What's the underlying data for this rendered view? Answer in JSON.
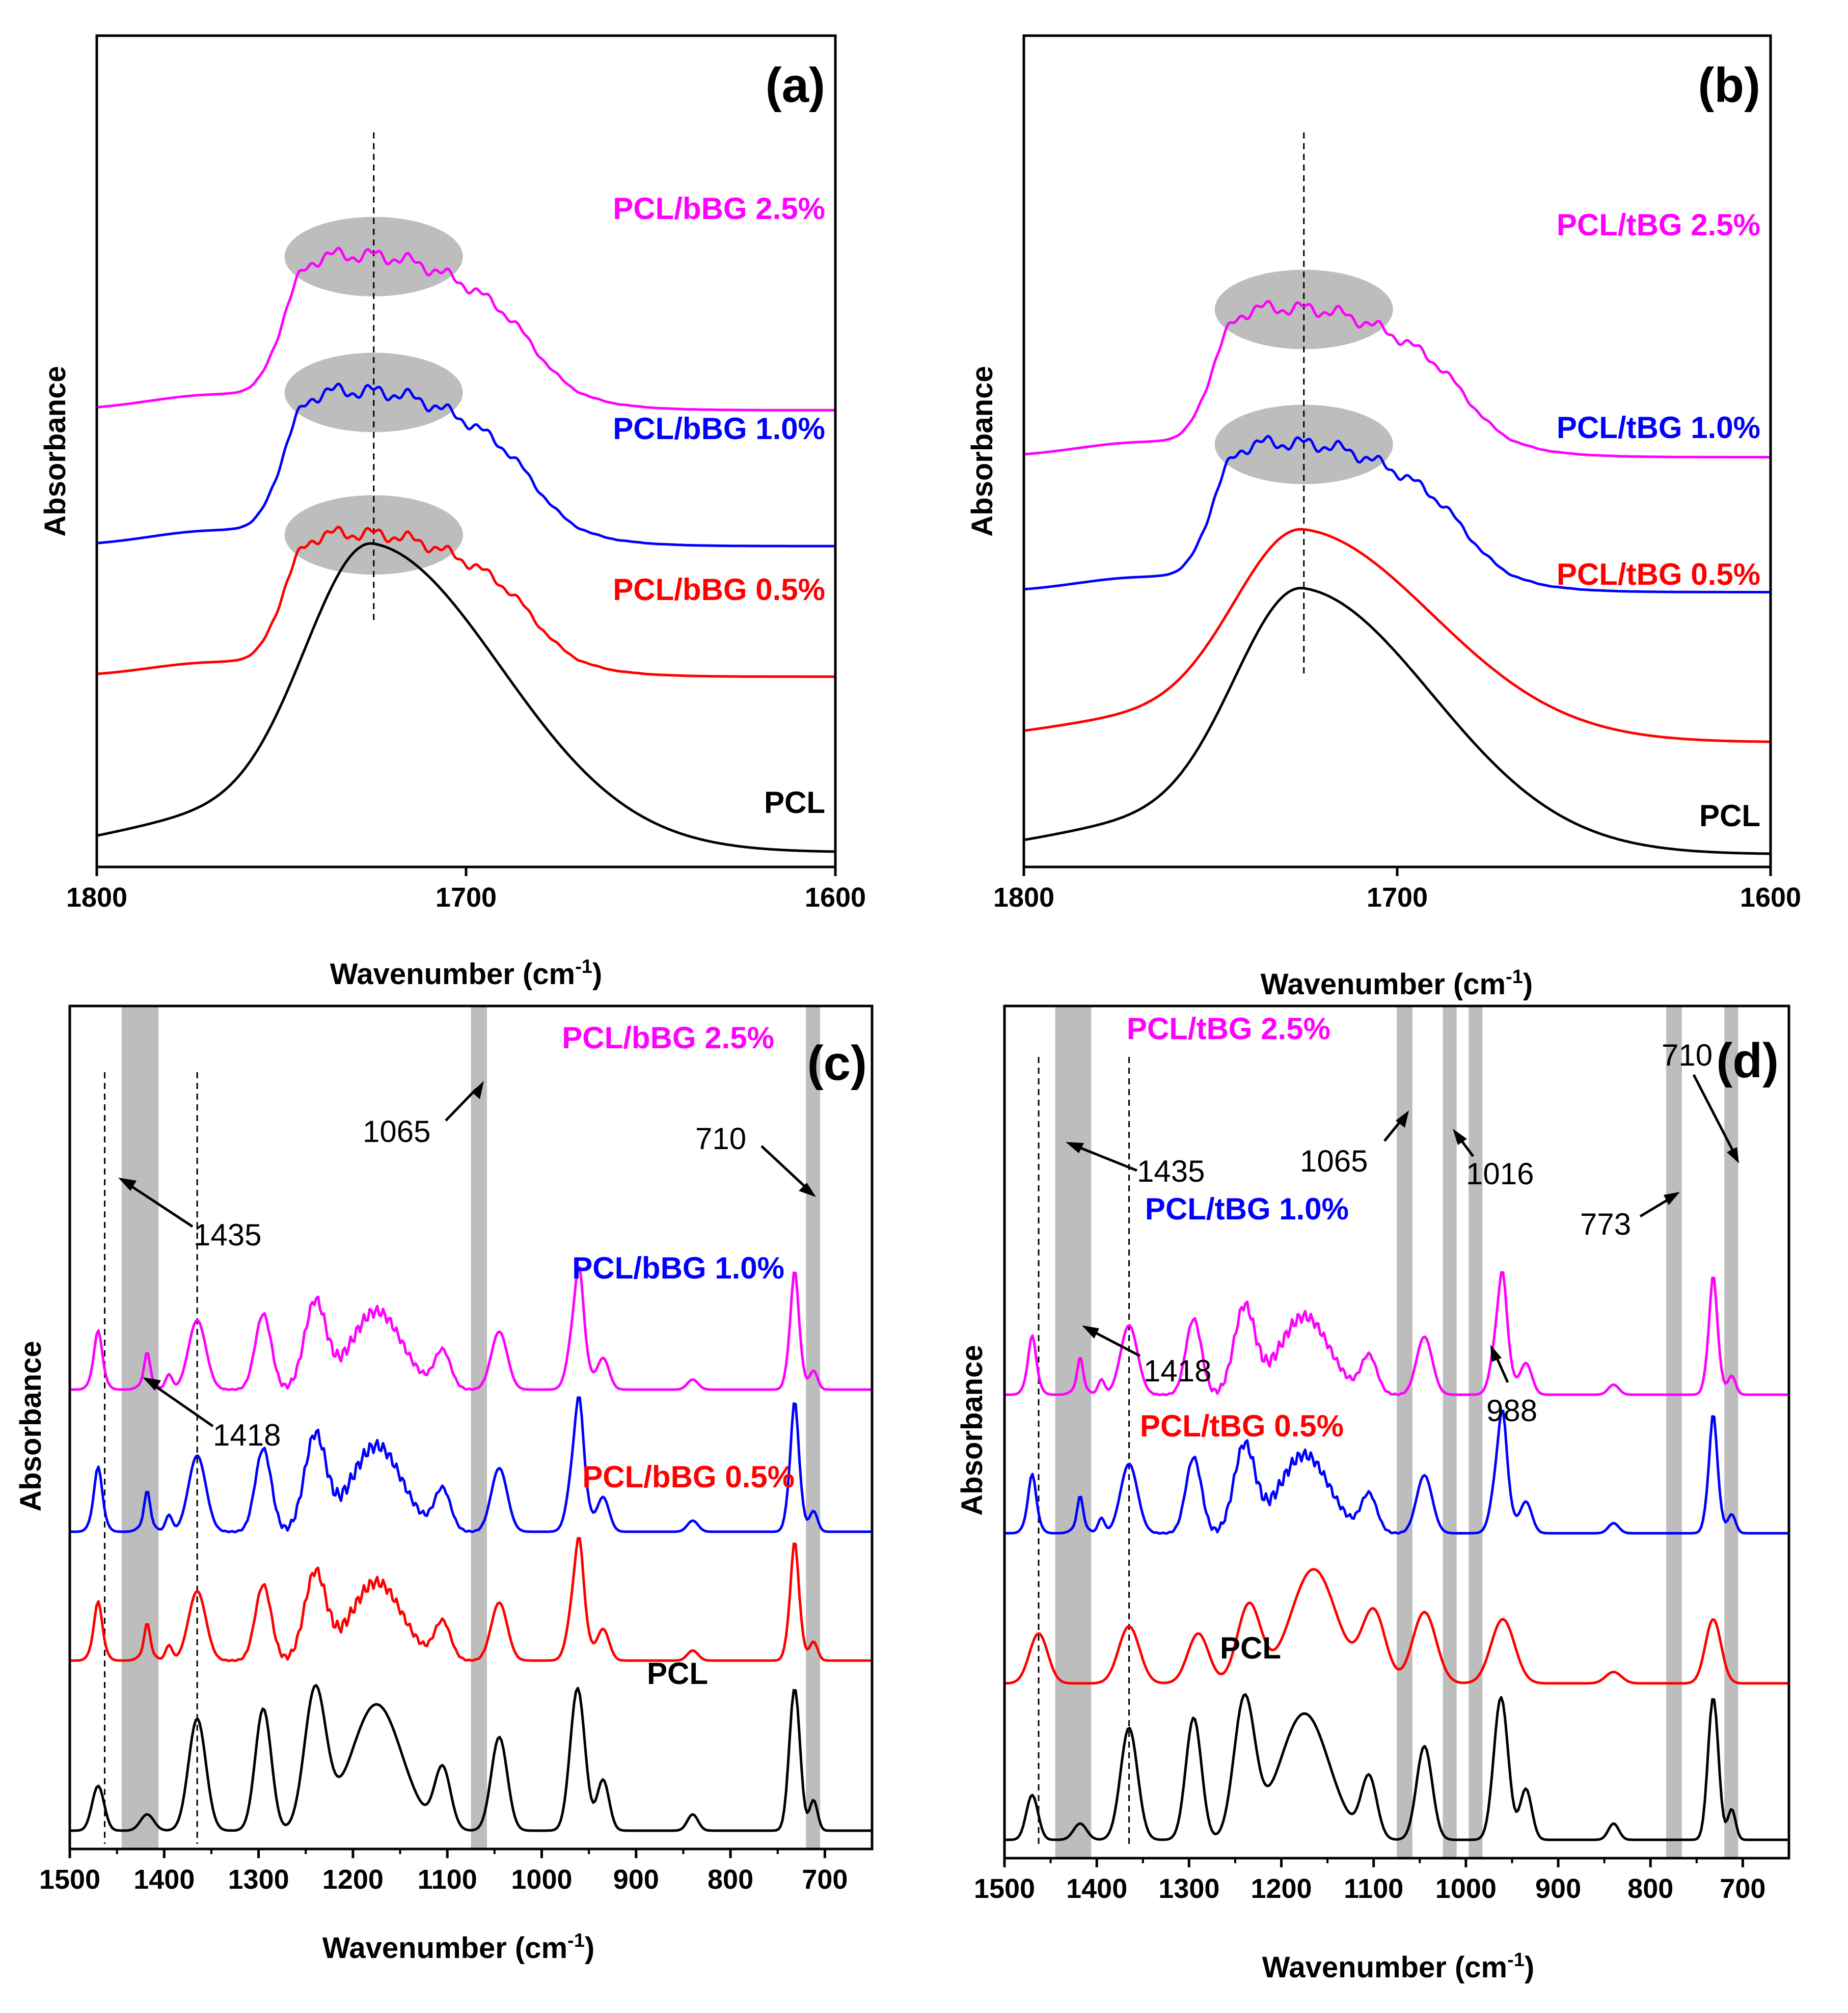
{
  "chart_data": [
    {
      "type": "line",
      "panel_label": "(a)",
      "xlabel": "Wavenumber (cm",
      "xlabel_sup": "-1",
      "xlabel_close": ")",
      "ylabel": "Absorbance",
      "xlim": [
        1800,
        1600
      ],
      "xticks": [
        "1800",
        "1700",
        "1600"
      ],
      "xtick_values": [
        1800,
        1700,
        1600
      ],
      "series": [
        {
          "name": "PCL",
          "color": "#000000",
          "offset": 0.0,
          "shape": "smooth",
          "peak": 1725
        },
        {
          "name": "PCL/bBG 0.5%",
          "color": "#ff0000",
          "offset": 0.62,
          "shape": "split",
          "peak": 1725
        },
        {
          "name": "PCL/bBG 1.0%",
          "color": "#0000ff",
          "offset": 1.06,
          "shape": "split",
          "peak": 1725
        },
        {
          "name": "PCL/bBG 2.5%",
          "color": "#ff00ff",
          "offset": 1.52,
          "shape": "split",
          "peak": 1725
        }
      ],
      "highlight_ellipses_center": [
        1725,
        1725,
        1725
      ],
      "dashed_line_x": 1725
    },
    {
      "type": "line",
      "panel_label": "(b)",
      "xlabel": "Wavenumber (cm",
      "xlabel_sup": "-1",
      "xlabel_close": ")",
      "ylabel": "Absorbance",
      "xlim": [
        1800,
        1600
      ],
      "xticks": [
        "1800",
        "1700",
        "1600"
      ],
      "xtick_values": [
        1800,
        1700,
        1600
      ],
      "series": [
        {
          "name": "PCL",
          "color": "#000000",
          "offset": 0.0,
          "shape": "smooth",
          "peak": 1725
        },
        {
          "name": "PCL/tBG 0.5%",
          "color": "#ff0000",
          "offset": 0.45,
          "shape": "smooth",
          "peak": 1725
        },
        {
          "name": "PCL/tBG 1.0%",
          "color": "#0000ff",
          "offset": 1.05,
          "shape": "split",
          "peak": 1725
        },
        {
          "name": "PCL/tBG 2.5%",
          "color": "#ff00ff",
          "offset": 1.58,
          "shape": "split",
          "peak": 1725
        }
      ],
      "highlight_ellipses_center": [
        1725,
        1725
      ],
      "dashed_line_x": 1725
    },
    {
      "type": "line",
      "panel_label": "(c)",
      "xlabel": "Wavenumber (cm",
      "xlabel_sup": "-1",
      "xlabel_close": ")",
      "ylabel": "Absorbance",
      "xlim": [
        1500,
        650
      ],
      "xticks": [
        "1500",
        "1400",
        "1300",
        "1200",
        "1100",
        "1000",
        "900",
        "800",
        "700"
      ],
      "xtick_values": [
        1500,
        1400,
        1300,
        1200,
        1100,
        1000,
        900,
        800,
        700
      ],
      "series": [
        {
          "name": "PCL",
          "color": "#000000",
          "offset": 0.0
        },
        {
          "name": "PCL/bBG 0.5%",
          "color": "#ff0000",
          "offset": 0.85
        },
        {
          "name": "PCL/bBG 1.0%",
          "color": "#0000ff",
          "offset": 1.48
        },
        {
          "name": "PCL/bBG 2.5%",
          "color": "#ff00ff",
          "offset": 2.18
        }
      ],
      "shaded_bands": [
        [
          1445,
          1406
        ],
        [
          1075,
          1058
        ],
        [
          720,
          705
        ]
      ],
      "dashed_lines_x": [
        1463,
        1365
      ],
      "annotations": [
        "1435",
        "1418",
        "1065",
        "710"
      ]
    },
    {
      "type": "line",
      "panel_label": "(d)",
      "xlabel": "Wavenumber (cm",
      "xlabel_sup": "-1",
      "xlabel_close": ")",
      "ylabel": "Absorbance",
      "xlim": [
        1500,
        650
      ],
      "xticks": [
        "1500",
        "1400",
        "1300",
        "1200",
        "1100",
        "1000",
        "900",
        "800",
        "700"
      ],
      "xtick_values": [
        1500,
        1400,
        1300,
        1200,
        1100,
        1000,
        900,
        800,
        700
      ],
      "series": [
        {
          "name": "PCL",
          "color": "#000000",
          "offset": 0.0
        },
        {
          "name": "PCL/tBG 0.5%",
          "color": "#ff0000",
          "offset": 0.78
        },
        {
          "name": "PCL/tBG 1.0%",
          "color": "#0000ff",
          "offset": 1.52
        },
        {
          "name": "PCL/tBG 2.5%",
          "color": "#ff00ff",
          "offset": 2.2
        }
      ],
      "shaded_bands": [
        [
          1445,
          1406
        ],
        [
          1075,
          1058
        ],
        [
          1025,
          1010
        ],
        [
          997,
          982
        ],
        [
          783,
          766
        ],
        [
          720,
          705
        ]
      ],
      "dashed_lines_x": [
        1463,
        1365
      ],
      "annotations": [
        "1435",
        "1418",
        "1065",
        "1016",
        "988",
        "773",
        "710"
      ]
    }
  ]
}
